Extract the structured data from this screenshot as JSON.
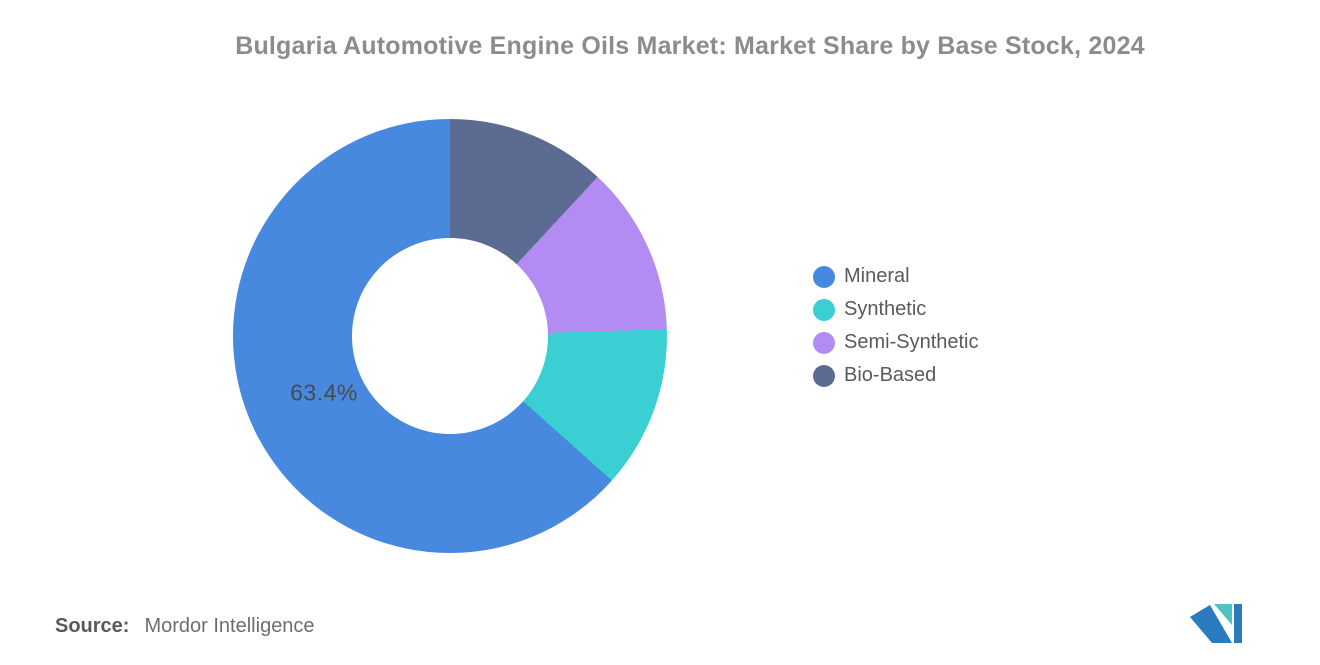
{
  "header": {
    "title": "Bulgaria Automotive Engine Oils Market: Market Share by Base Stock, 2024"
  },
  "chart_data": {
    "type": "pie",
    "subtype": "donut",
    "title": "Bulgaria Automotive Engine Oils Market: Market Share by Base Stock, 2024",
    "unit": "%",
    "segments": [
      {
        "label": "Mineral",
        "value": 63.4,
        "color": "#4889E0"
      },
      {
        "label": "Synthetic",
        "value": 12.1,
        "color": "#39CFD3"
      },
      {
        "label": "Semi-Synthetic",
        "value": 12.6,
        "color": "#B28CF2"
      },
      {
        "label": "Bio-Based",
        "value": 11.9,
        "color": "#5C6B92"
      }
    ],
    "slice_label": "63.4%",
    "legend_position": "right",
    "hole_ratio": 0.45,
    "draw_order": "counterclockwise from top in legend order (Bio-Based appears first clockwise from 12 o'clock)"
  },
  "footer": {
    "source_label": "Source:",
    "source_value": "Mordor Intelligence"
  },
  "colors": {
    "background": "#FFFFFF",
    "title_text": "#8C8C8C",
    "legend_text": "#5A5A5A",
    "slice_label_text": "#4A4A4A",
    "source_text": "#6E6E6E",
    "logo_teal": "#4FC2C4",
    "logo_blue": "#2B7BBF"
  }
}
